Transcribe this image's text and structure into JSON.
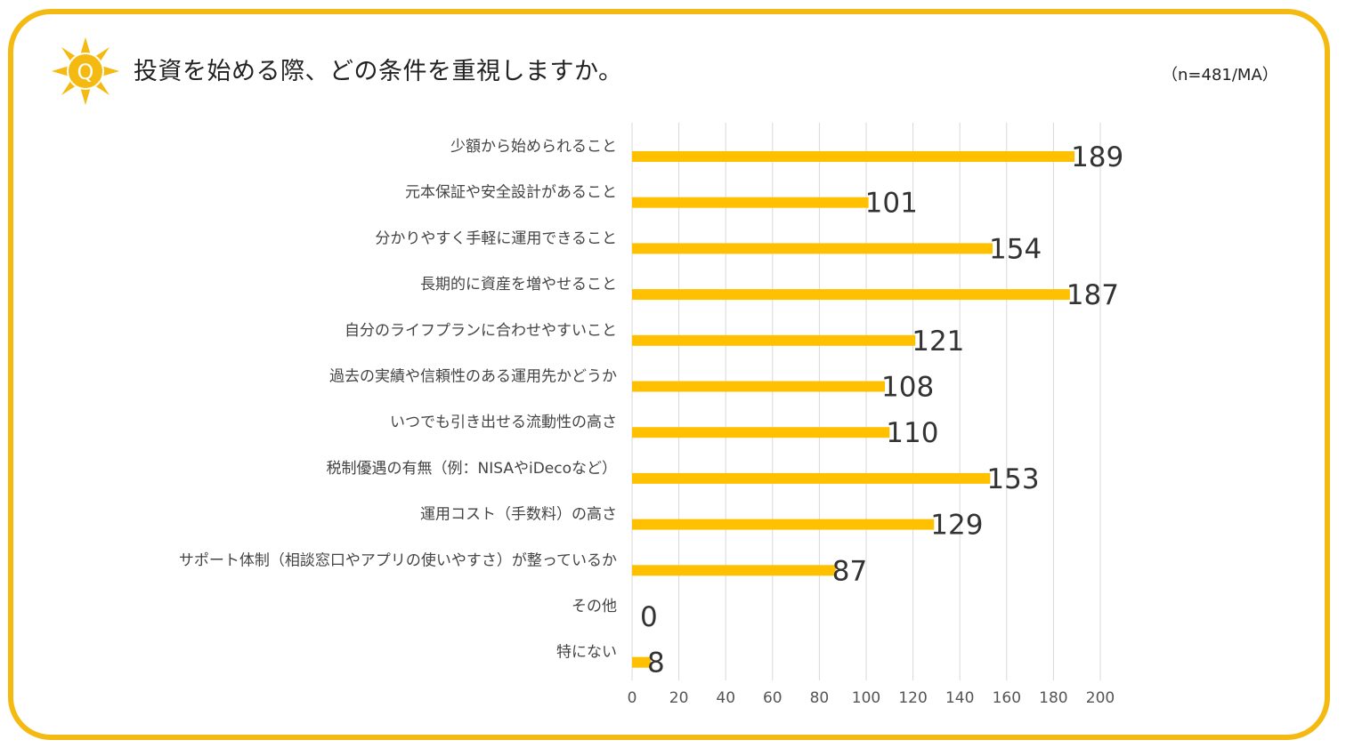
{
  "header": {
    "title": "投資を始める際、どの条件を重視しますか。",
    "note": "（n=481/MA）",
    "q_badge": "Q",
    "badge_icon": "sun-question-icon"
  },
  "colors": {
    "accent": "#F5BA12",
    "bar": "#FFC000",
    "grid": "#D9D9D9",
    "text": "#222222"
  },
  "chart_data": {
    "type": "bar",
    "orientation": "horizontal",
    "categories": [
      "少額から始められること",
      "元本保証や安全設計があること",
      "分かりやすく手軽に運用できること",
      "長期的に資産を増やせること",
      "自分のライフプランに合わせやすいこと",
      "過去の実績や信頼性のある運用先かどうか",
      "いつでも引き出せる流動性の高さ",
      "税制優遇の有無（例：NISAやiDecoなど）",
      "運用コスト（手数料）の高さ",
      "サポート体制（相談窓口やアプリの使いやすさ）が整っているか",
      "その他",
      "特にない"
    ],
    "values": [
      189,
      101,
      154,
      187,
      121,
      108,
      110,
      153,
      129,
      87,
      0,
      8
    ],
    "xlim": [
      0,
      200
    ],
    "xticks": [
      0,
      20,
      40,
      60,
      80,
      100,
      120,
      140,
      160,
      180,
      200
    ],
    "grid": true,
    "title": "投資を始める際、どの条件を重視しますか。",
    "xlabel": "",
    "ylabel": ""
  }
}
